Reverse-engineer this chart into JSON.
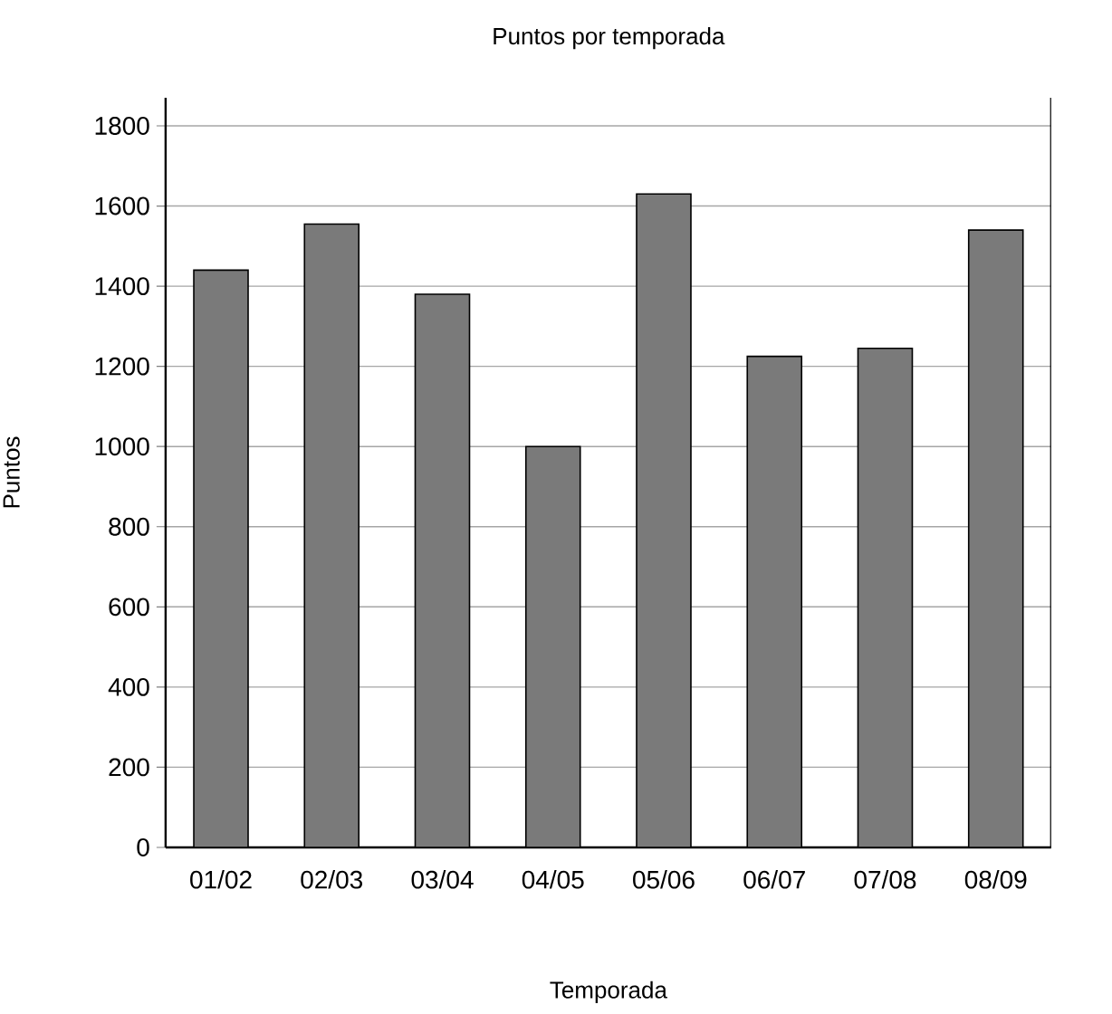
{
  "chart_data": {
    "type": "bar",
    "title": "Puntos por temporada",
    "xlabel": "Temporada",
    "ylabel": "Puntos",
    "categories": [
      "01/02",
      "02/03",
      "03/04",
      "04/05",
      "05/06",
      "06/07",
      "07/08",
      "08/09"
    ],
    "values": [
      1440,
      1555,
      1380,
      1000,
      1630,
      1225,
      1245,
      1540
    ],
    "color": "#7a7a7a",
    "ylim": [
      0,
      1870
    ],
    "yticks": [
      0,
      200,
      400,
      600,
      800,
      1000,
      1200,
      1400,
      1600,
      1800
    ],
    "grid": "y"
  }
}
